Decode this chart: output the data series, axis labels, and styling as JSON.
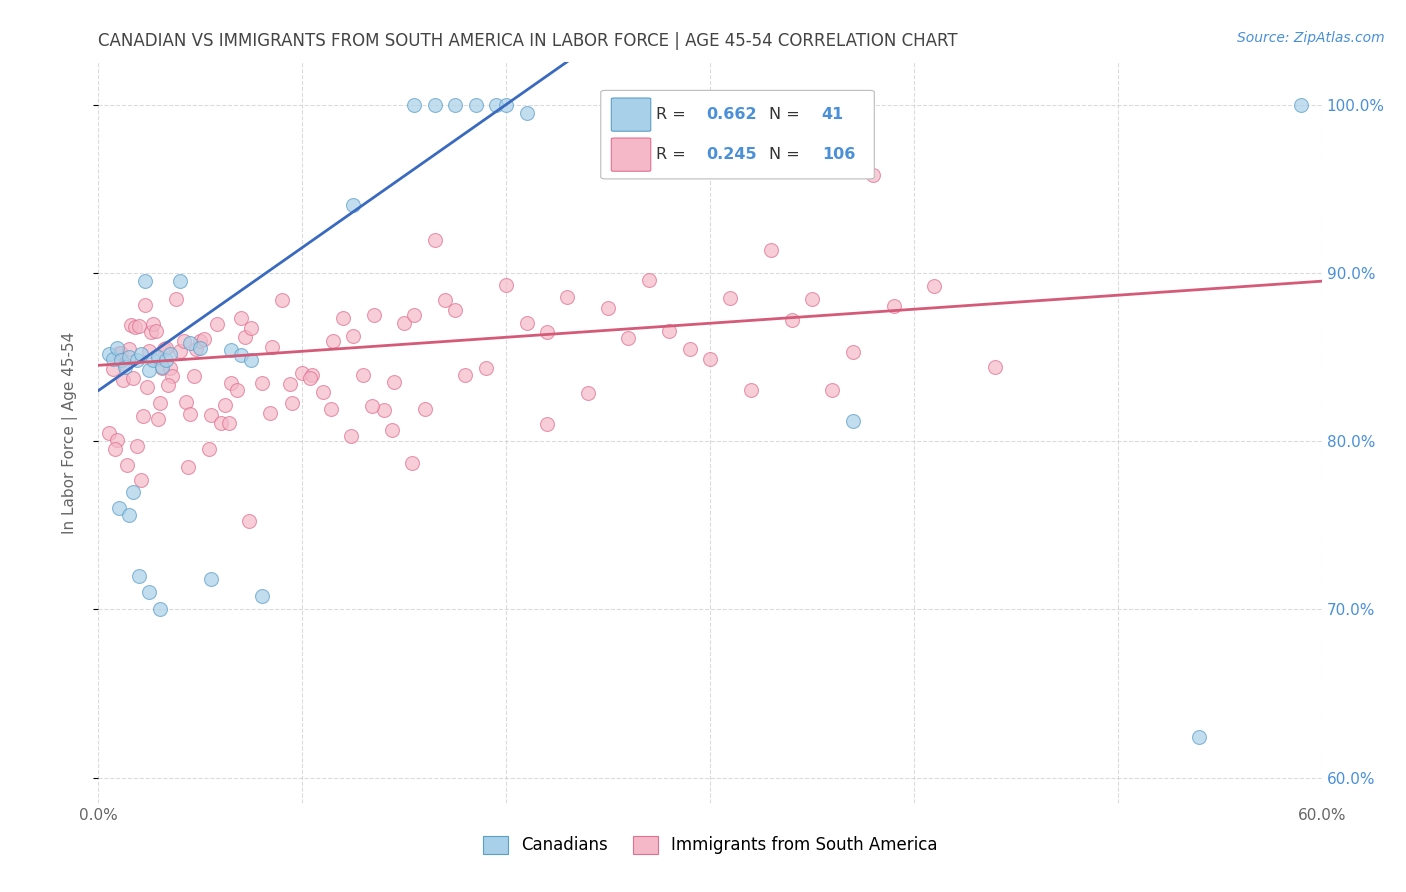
{
  "title": "CANADIAN VS IMMIGRANTS FROM SOUTH AMERICA IN LABOR FORCE | AGE 45-54 CORRELATION CHART",
  "source": "Source: ZipAtlas.com",
  "ylabel": "In Labor Force | Age 45-54",
  "xlim": [
    0.0,
    0.6
  ],
  "ylim": [
    0.585,
    1.025
  ],
  "xticks": [
    0.0,
    0.1,
    0.2,
    0.3,
    0.4,
    0.5,
    0.6
  ],
  "xtick_labels": [
    "0.0%",
    "",
    "",
    "",
    "",
    "",
    "60.0%"
  ],
  "yticks": [
    0.6,
    0.7,
    0.8,
    0.9,
    1.0
  ],
  "ytick_labels": [
    "60.0%",
    "70.0%",
    "80.0%",
    "90.0%",
    "100.0%"
  ],
  "canadian_R": 0.662,
  "canadian_N": 41,
  "immigrant_R": 0.245,
  "immigrant_N": 106,
  "canadian_fill": "#a8d0e8",
  "canadian_edge": "#5b9fc8",
  "immigrant_fill": "#f4b8c8",
  "immigrant_edge": "#e07090",
  "trendline_blue": "#3a6abf",
  "trendline_pink": "#d45a78",
  "background_color": "#ffffff",
  "grid_color": "#cccccc",
  "title_color": "#444444",
  "source_color": "#4a90d9",
  "raxis_color": "#4a90d9",
  "ylabel_color": "#666666",
  "legend_text_dark": "#333333",
  "legend_text_blue": "#4a90d9",
  "can_x": [
    0.005,
    0.007,
    0.009,
    0.01,
    0.011,
    0.012,
    0.013,
    0.014,
    0.015,
    0.016,
    0.017,
    0.018,
    0.019,
    0.02,
    0.021,
    0.022,
    0.023,
    0.025,
    0.027,
    0.03,
    0.033,
    0.04,
    0.045,
    0.05,
    0.055,
    0.06,
    0.065,
    0.07,
    0.075,
    0.08,
    0.12,
    0.14,
    0.16,
    0.175,
    0.185,
    0.195,
    0.2,
    0.21,
    0.37,
    0.54,
    0.59
  ],
  "can_y": [
    0.854,
    0.848,
    0.851,
    0.85,
    0.845,
    0.848,
    0.842,
    0.85,
    0.847,
    0.844,
    0.77,
    0.76,
    0.848,
    0.845,
    0.85,
    0.844,
    0.895,
    0.84,
    0.72,
    0.84,
    0.895,
    0.855,
    0.858,
    0.855,
    0.718,
    0.855,
    0.852,
    0.85,
    0.848,
    0.71,
    0.94,
    1.0,
    1.0,
    1.0,
    1.0,
    1.0,
    1.0,
    0.995,
    0.812,
    0.624,
    1.0
  ],
  "imm_x": [
    0.005,
    0.007,
    0.009,
    0.01,
    0.011,
    0.012,
    0.013,
    0.014,
    0.015,
    0.016,
    0.017,
    0.018,
    0.019,
    0.02,
    0.021,
    0.022,
    0.023,
    0.024,
    0.025,
    0.026,
    0.027,
    0.028,
    0.029,
    0.03,
    0.031,
    0.032,
    0.033,
    0.034,
    0.035,
    0.036,
    0.037,
    0.038,
    0.039,
    0.04,
    0.041,
    0.042,
    0.043,
    0.044,
    0.045,
    0.046,
    0.047,
    0.048,
    0.05,
    0.052,
    0.055,
    0.058,
    0.06,
    0.062,
    0.065,
    0.068,
    0.07,
    0.072,
    0.075,
    0.08,
    0.085,
    0.09,
    0.095,
    0.1,
    0.105,
    0.11,
    0.115,
    0.12,
    0.125,
    0.13,
    0.135,
    0.14,
    0.145,
    0.15,
    0.16,
    0.17,
    0.18,
    0.19,
    0.2,
    0.21,
    0.22,
    0.23,
    0.24,
    0.25,
    0.26,
    0.27,
    0.28,
    0.29,
    0.3,
    0.31,
    0.32,
    0.33,
    0.35,
    0.37,
    0.39,
    0.41,
    0.44,
    0.015,
    0.02,
    0.025,
    0.03,
    0.035,
    0.04,
    0.045,
    0.05,
    0.06,
    0.07,
    0.08,
    0.09,
    0.1,
    0.11,
    0.13
  ],
  "imm_y": [
    0.848,
    0.85,
    0.845,
    0.852,
    0.84,
    0.848,
    0.845,
    0.838,
    0.85,
    0.842,
    0.848,
    0.835,
    0.845,
    0.848,
    0.842,
    0.845,
    0.848,
    0.84,
    0.855,
    0.848,
    0.842,
    0.848,
    0.84,
    0.862,
    0.855,
    0.852,
    0.848,
    0.855,
    0.858,
    0.852,
    0.848,
    0.85,
    0.86,
    0.858,
    0.848,
    0.855,
    0.862,
    0.85,
    0.855,
    0.858,
    0.852,
    0.848,
    0.865,
    0.86,
    0.858,
    0.862,
    0.858,
    0.855,
    0.862,
    0.86,
    0.858,
    0.865,
    0.85,
    0.858,
    0.862,
    0.858,
    0.855,
    0.87,
    0.862,
    0.865,
    0.86,
    0.865,
    0.858,
    0.87,
    0.855,
    0.862,
    0.855,
    0.858,
    0.862,
    0.865,
    0.87,
    0.862,
    0.87,
    0.858,
    0.862,
    0.855,
    0.858,
    0.862,
    0.855,
    0.858,
    0.86,
    0.848,
    0.855,
    0.84,
    0.838,
    0.852,
    0.84,
    0.858,
    0.842,
    0.852,
    0.862,
    0.808,
    0.82,
    0.815,
    0.82,
    0.81,
    0.808,
    0.818,
    0.812,
    0.815,
    0.808,
    0.812,
    0.818,
    0.812,
    0.805,
    0.81
  ],
  "marker_size": 100,
  "marker_alpha": 0.7,
  "trendline_lw": 2.0
}
